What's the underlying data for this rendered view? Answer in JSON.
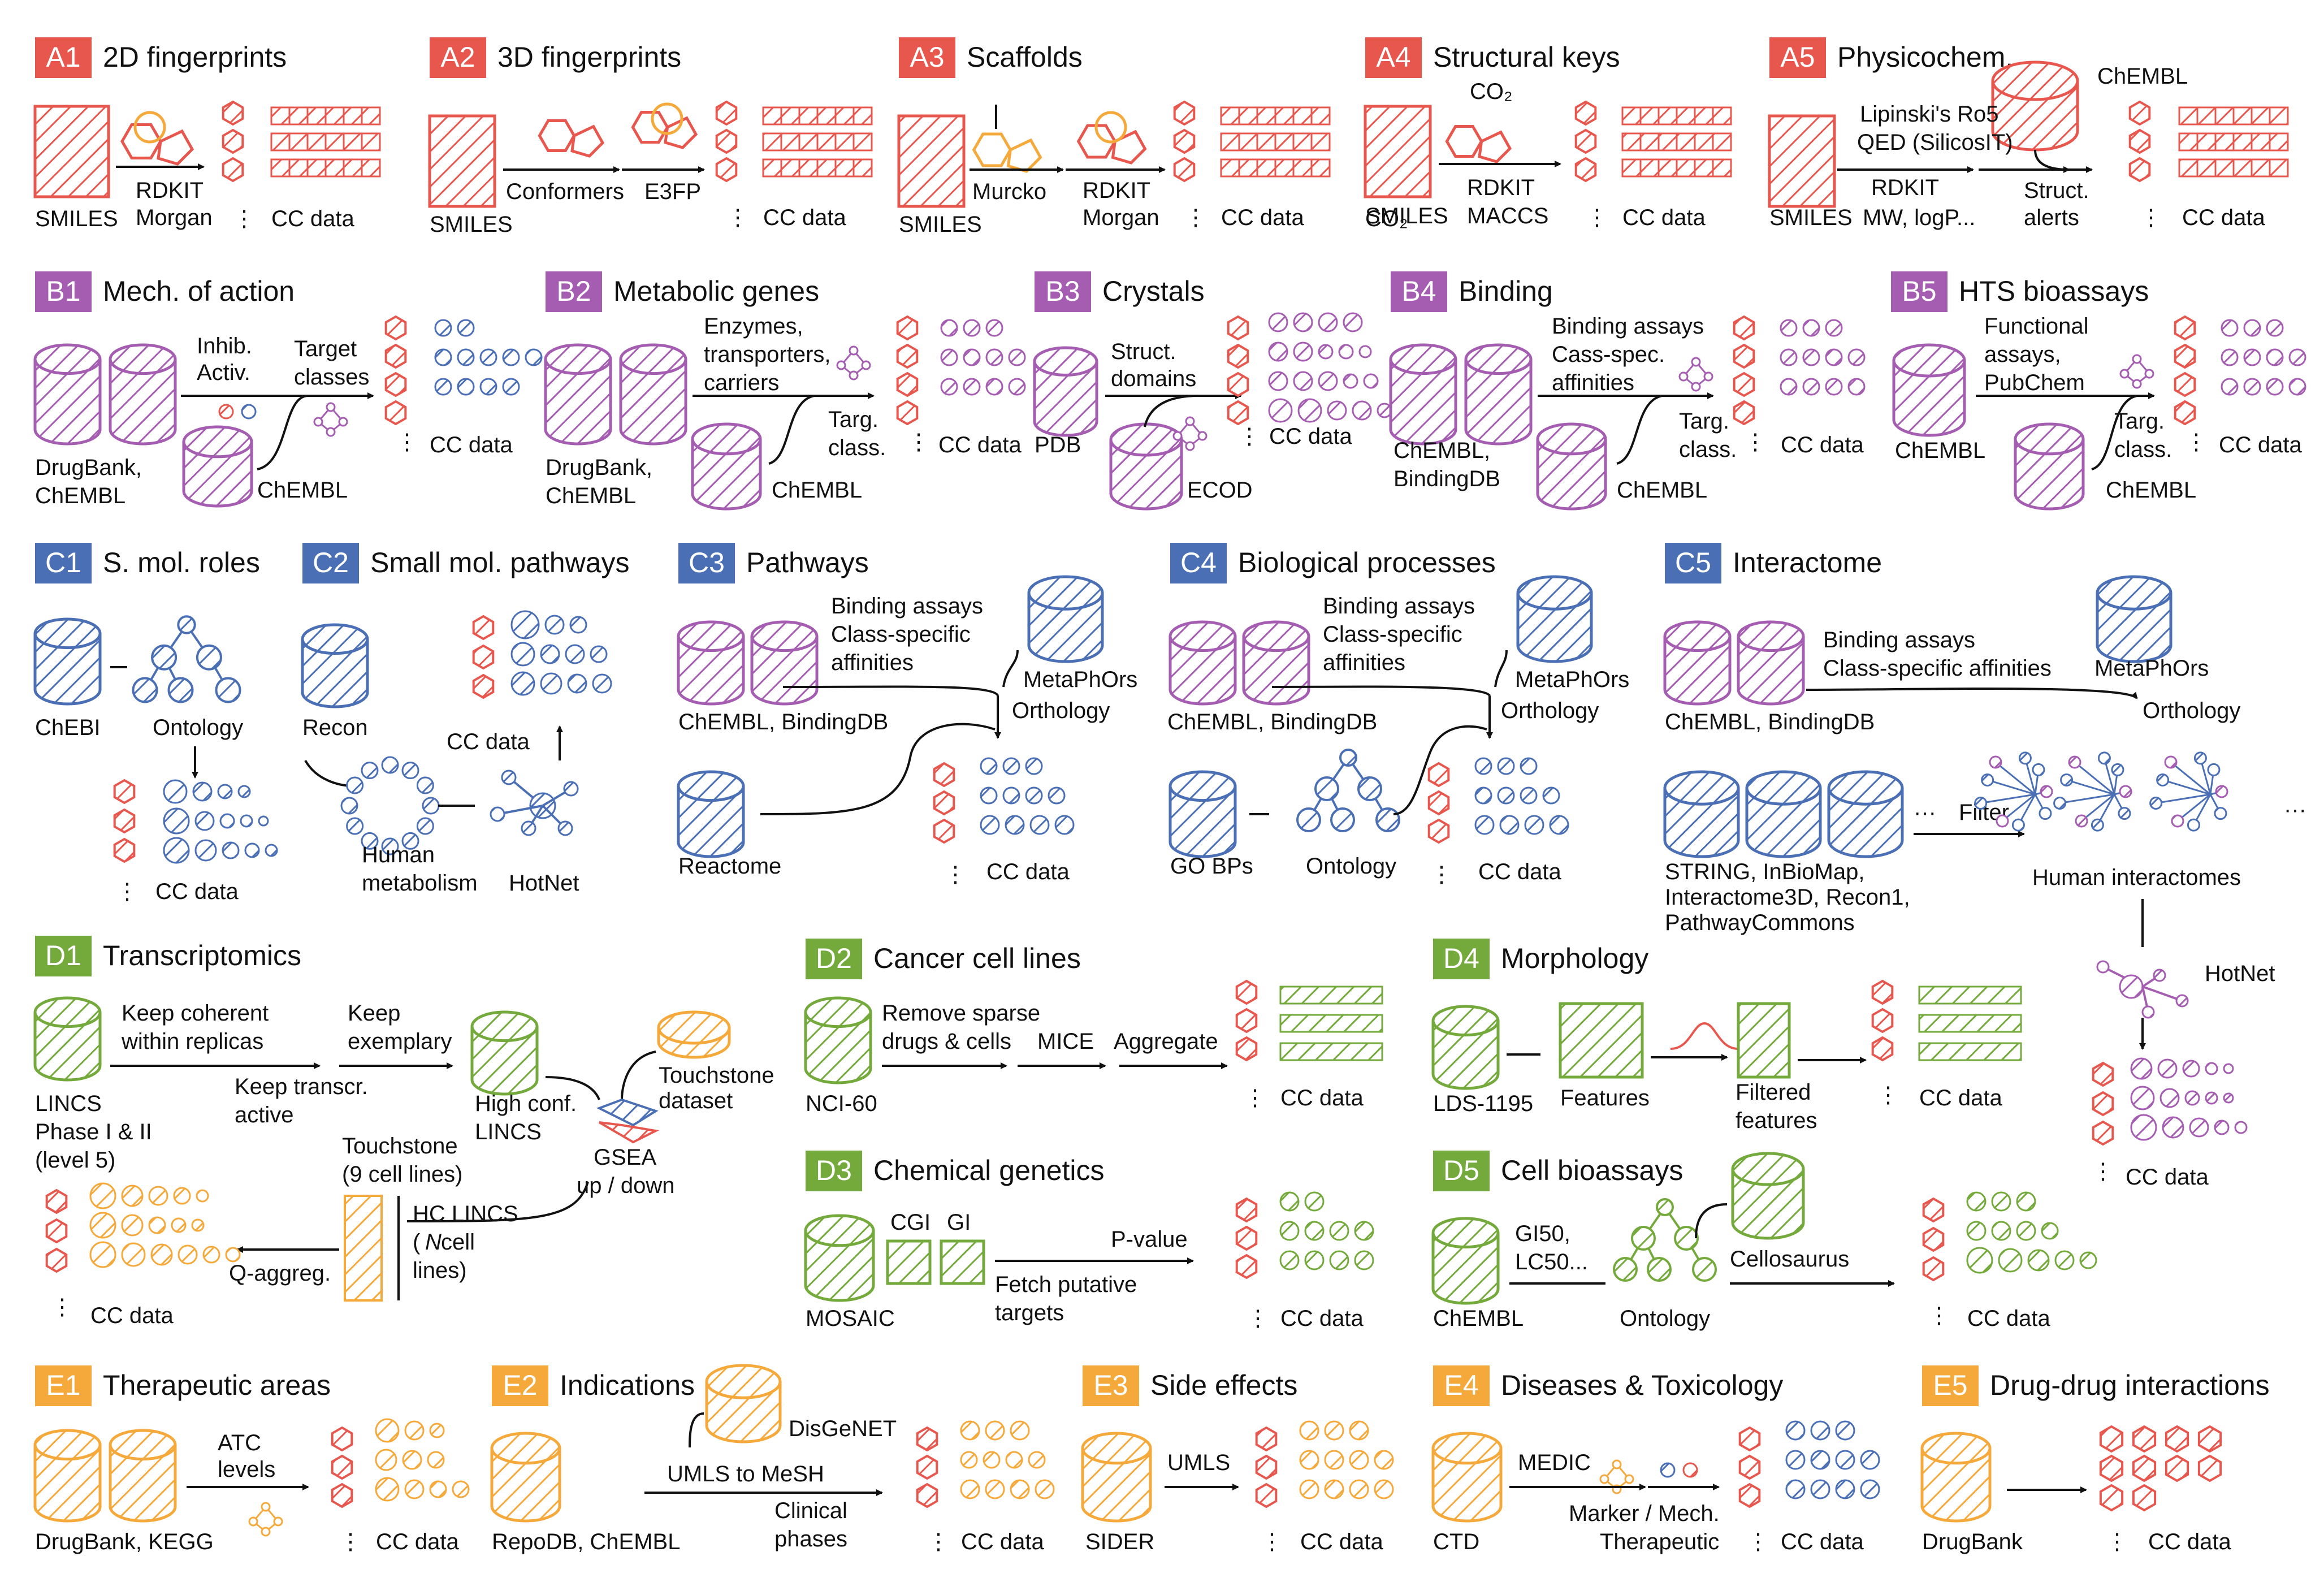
{
  "colors": {
    "A": "#e8574e",
    "B": "#a45db0",
    "C": "#4a6fb5",
    "D": "#74a93b",
    "E": "#f6a93b",
    "ink": "#111111"
  },
  "icons": [
    "hatched-square-icon",
    "hexagon-icon",
    "database-icon",
    "fingerprint-bar-icon",
    "circle-feature-icon",
    "tree-ontology-icon",
    "network-icon",
    "molecule-icon",
    "gaussian-icon"
  ],
  "panels": [
    {
      "id": "A1",
      "title": "2D fingerprints",
      "labels": [
        "SMILES",
        "RDKIT",
        "Morgan",
        "⋮",
        "CC data"
      ]
    },
    {
      "id": "A2",
      "title": "3D fingerprints",
      "labels": [
        "SMILES",
        "Conformers",
        "E3FP",
        "⋮",
        "CC data"
      ]
    },
    {
      "id": "A3",
      "title": "Scaffolds",
      "labels": [
        "SMILES",
        "Murcko",
        "RDKIT",
        "Morgan",
        "⋮",
        "CC data"
      ]
    },
    {
      "id": "A4",
      "title": "Structural keys",
      "labels": [
        "CO₂",
        "SMILES",
        "RDKIT",
        "MACCS",
        "⋮",
        "CC data"
      ]
    },
    {
      "id": "A5",
      "title": "Physicochem.",
      "labels": [
        "ChEMBL",
        "Lipinski's Ro5",
        "QED (SilicosIT)",
        "SMILES",
        "RDKIT",
        "MW, logP...",
        "Struct.",
        "alerts",
        "⋮",
        "CC data"
      ]
    },
    {
      "id": "B1",
      "title": "Mech. of action",
      "labels": [
        "DrugBank,",
        "ChEMBL",
        "Inhib.",
        "Activ.",
        "Target",
        "classes",
        "ChEMBL",
        "⋮",
        "CC data"
      ]
    },
    {
      "id": "B2",
      "title": "Metabolic genes",
      "labels": [
        "Enzymes,",
        "transporters,",
        "carriers",
        "DrugBank,",
        "ChEMBL",
        "Targ.",
        "class.",
        "ChEMBL",
        "⋮",
        "CC data"
      ]
    },
    {
      "id": "B3",
      "title": "Crystals",
      "labels": [
        "Struct.",
        "domains",
        "PDB",
        "ECOD",
        "⋮",
        "CC data"
      ]
    },
    {
      "id": "B4",
      "title": "Binding",
      "labels": [
        "Binding assays",
        "Cass-spec.",
        "affinities",
        "ChEMBL,",
        "BindingDB",
        "Targ.",
        "class.",
        "ChEMBL",
        "⋮",
        "CC data"
      ]
    },
    {
      "id": "B5",
      "title": "HTS bioassays",
      "labels": [
        "Functional",
        "assays,",
        "PubChem",
        "ChEMBL",
        "Targ.",
        "class.",
        "ChEMBL",
        "⋮",
        "CC data"
      ]
    },
    {
      "id": "C1",
      "title": "S. mol. roles",
      "labels": [
        "ChEBI",
        "Ontology",
        "⋮",
        "CC data"
      ]
    },
    {
      "id": "C2",
      "title": "Small mol. pathways",
      "labels": [
        "Recon",
        "CC data",
        "Human",
        "metabolism",
        "HotNet"
      ]
    },
    {
      "id": "C3",
      "title": "Pathways",
      "labels": [
        "Binding assays",
        "Class-specific",
        "affinities",
        "MetaPhOrs",
        "ChEMBL, BindingDB",
        "Orthology",
        "Reactome",
        "⋮",
        "CC data"
      ]
    },
    {
      "id": "C4",
      "title": "Biological processes",
      "labels": [
        "Binding assays",
        "Class-specific",
        "affinities",
        "MetaPhOrs",
        "ChEMBL, BindingDB",
        "Orthology",
        "GO BPs",
        "Ontology",
        "⋮",
        "CC data"
      ]
    },
    {
      "id": "C5",
      "title": "Interactome",
      "labels": [
        "Binding assays",
        "Class-specific affinities",
        "MetaPhOrs",
        "ChEMBL, BindingDB",
        "Orthology",
        "···",
        "Filter",
        "···",
        "STRING, InBioMap,",
        "Interactome3D, Recon1,",
        "PathwayCommons",
        "Human interactomes",
        "HotNet",
        "⋮",
        "CC data"
      ]
    },
    {
      "id": "D1",
      "title": "Transcriptomics",
      "labels": [
        "Keep coherent",
        "within replicas",
        "Keep",
        "exemplary",
        "Keep transcr.",
        "active",
        "Touchstone",
        "dataset",
        "LINCS",
        "Phase I & II",
        "(level 5)",
        "High conf.",
        "LINCS",
        "GSEA",
        "up / down",
        "Touchstone",
        "(9 cell lines)",
        "HC LINCS",
        "(",
        "N",
        " cell",
        "lines)",
        "Q-aggreg.",
        "⋮",
        "CC data"
      ]
    },
    {
      "id": "D2",
      "title": "Cancer cell lines",
      "labels": [
        "Remove sparse",
        "drugs & cells",
        "MICE",
        "Aggregate",
        "NCI-60",
        "⋮",
        "CC data"
      ]
    },
    {
      "id": "D3",
      "title": "Chemical genetics",
      "labels": [
        "CGI",
        "GI",
        "P-value",
        "Fetch putative",
        "targets",
        "MOSAIC",
        "⋮",
        "CC data"
      ]
    },
    {
      "id": "D4",
      "title": "Morphology",
      "labels": [
        "LDS-1195",
        "Features",
        "Filtered",
        "features",
        "⋮",
        "CC data"
      ]
    },
    {
      "id": "D5",
      "title": "Cell bioassays",
      "labels": [
        "GI50,",
        "LC50...",
        "Cellosaurus",
        "ChEMBL",
        "Ontology",
        "⋮",
        "CC data"
      ]
    },
    {
      "id": "E1",
      "title": "Therapeutic areas",
      "labels": [
        "ATC",
        "levels",
        "DrugBank, KEGG",
        "⋮",
        "CC data"
      ]
    },
    {
      "id": "E2",
      "title": "Indications",
      "labels": [
        "DisGeNET",
        "UMLS to MeSH",
        "Clinical",
        "phases",
        "RepoDB, ChEMBL",
        "⋮",
        "CC data"
      ]
    },
    {
      "id": "E3",
      "title": "Side effects",
      "labels": [
        "UMLS",
        "SIDER",
        "⋮",
        "CC data"
      ]
    },
    {
      "id": "E4",
      "title": "Diseases & Toxicology",
      "labels": [
        "MEDIC",
        "Marker / Mech.",
        "Therapeutic",
        "CTD",
        "⋮",
        "CC data"
      ]
    },
    {
      "id": "E5",
      "title": "Drug-drug interactions",
      "labels": [
        "DrugBank",
        "⋮",
        "CC data"
      ]
    }
  ]
}
